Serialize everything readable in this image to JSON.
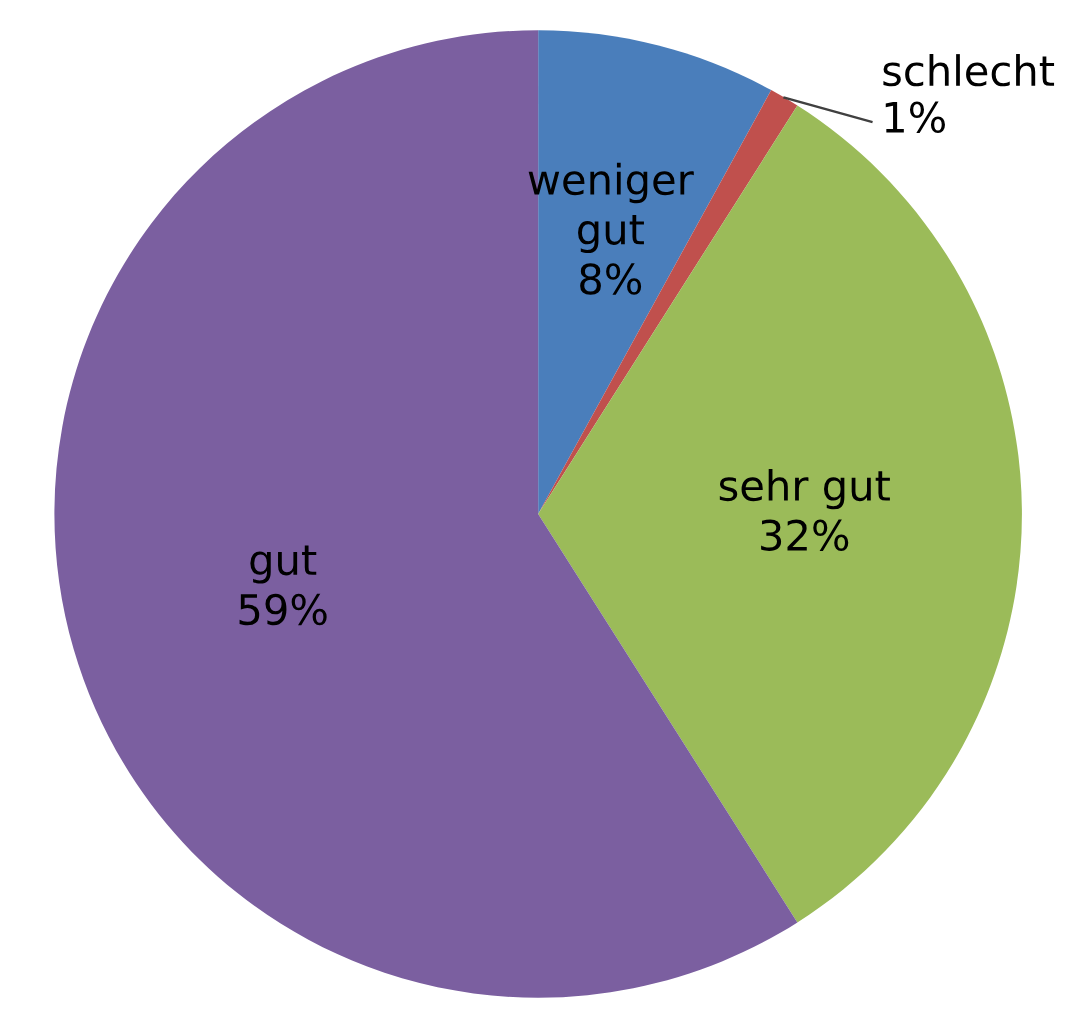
{
  "chart_data": {
    "type": "pie",
    "categories": [
      "weniger\ngut",
      "schlecht",
      "sehr gut",
      "gut"
    ],
    "values": [
      8,
      1,
      32,
      59
    ],
    "value_labels": [
      "8%",
      "1%",
      "32%",
      "59%"
    ],
    "colors": [
      "#4a7ebb",
      "#c0504d",
      "#9bbb59",
      "#7b5fa0"
    ]
  }
}
